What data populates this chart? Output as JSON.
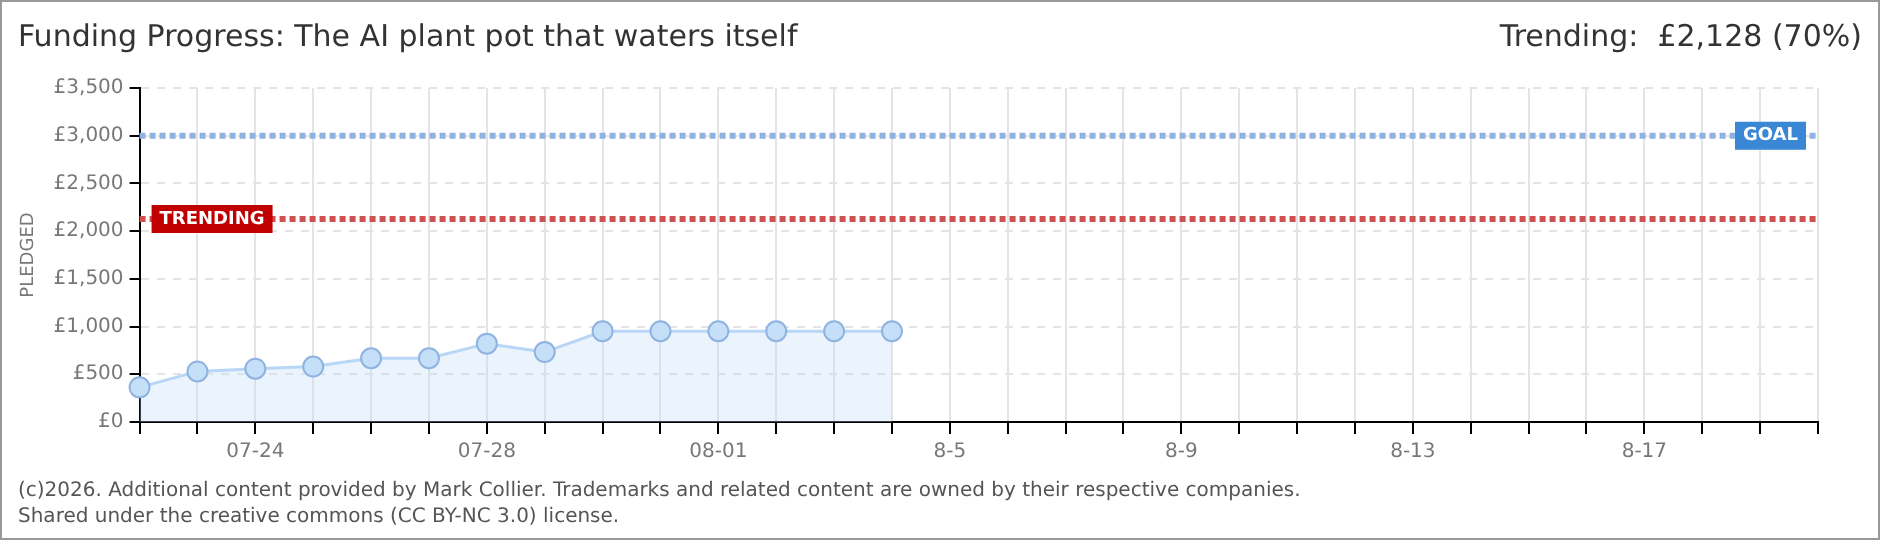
{
  "chart_data": {
    "type": "area",
    "title": "Funding Progress: The AI plant pot that waters itself",
    "ylabel": "PLEDGED",
    "categories": [
      null,
      null,
      "07-24",
      null,
      null,
      null,
      "07-28",
      null,
      null,
      null,
      "08-01",
      null,
      null,
      null,
      "8-5",
      null,
      null,
      null,
      "8-9",
      null,
      null,
      null,
      "8-13",
      null,
      null,
      null,
      "8-17",
      null,
      null,
      null
    ],
    "series": [
      {
        "color": "#b8d6f5",
        "values": [
          363,
          530,
          559,
          581,
          668,
          668,
          821,
          733,
          951,
          951,
          951,
          951,
          951,
          951,
          null,
          null,
          null,
          null,
          null,
          null,
          null,
          null,
          null,
          null,
          null,
          null,
          null,
          null,
          null,
          null
        ]
      }
    ],
    "ylim": [
      0,
      3500
    ],
    "yticks": [
      {
        "value": 0,
        "label": "£0"
      },
      {
        "value": 500,
        "label": "£500"
      },
      {
        "value": 1000,
        "label": "£1,000"
      },
      {
        "value": 1500,
        "label": "£1,500"
      },
      {
        "value": 2000,
        "label": "£2,000"
      },
      {
        "value": 2500,
        "label": "£2,500"
      },
      {
        "value": 3000,
        "label": "£3,000"
      },
      {
        "value": 3500,
        "label": "£3,500"
      }
    ],
    "ref_lines": [
      {
        "axis": "y",
        "value": 3000,
        "label": "GOAL",
        "color": "#8fb3e0",
        "line_style": "dotted"
      },
      {
        "axis": "y",
        "value": 2128,
        "label": "TRENDING",
        "color": "#d05050",
        "line_style": "dotted"
      }
    ],
    "annotations": [
      "Trending:  £2,128 (70%)",
      "(c)2026. Additional content provided by Mark Collier. Trademarks and related content are owned by their respective companies.",
      "Shared under the creative commons (CC BY-NC 3.0) license."
    ],
    "grid": true,
    "legend": false,
    "marker": "circle"
  }
}
